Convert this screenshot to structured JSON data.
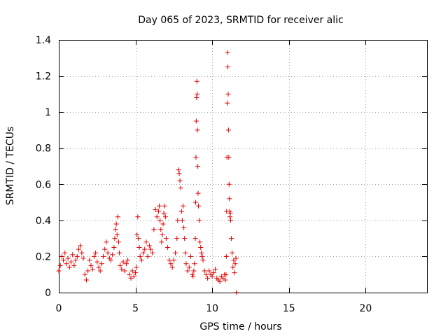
{
  "chart_data": {
    "type": "scatter",
    "title": "Day 065 of 2023, SRMTID for receiver alic",
    "xlabel": "GPS time / hours",
    "ylabel": "SRMTID / TECUs",
    "xlim": [
      0,
      24
    ],
    "ylim": [
      0,
      1.4
    ],
    "x_ticks": [
      0,
      5,
      10,
      15,
      20
    ],
    "x_tick_labels": [
      "0",
      "5",
      "10",
      "15",
      "20"
    ],
    "y_ticks": [
      0,
      0.2,
      0.4,
      0.6,
      0.8,
      1,
      1.2,
      1.4
    ],
    "y_tick_labels": [
      "0",
      "0.2",
      "0.4",
      "0.6",
      "0.8",
      "1",
      "1.2",
      "1.4"
    ],
    "grid": true,
    "marker": "+",
    "series": [
      {
        "name": "SRMTID",
        "color": "#e00000",
        "x": [
          0.0,
          0.1,
          0.2,
          0.3,
          0.4,
          0.5,
          0.6,
          0.7,
          0.8,
          0.9,
          1.0,
          1.1,
          1.2,
          1.3,
          1.4,
          1.5,
          1.6,
          1.7,
          1.8,
          1.9,
          2.0,
          2.1,
          2.2,
          2.3,
          2.4,
          2.5,
          2.6,
          2.7,
          2.8,
          2.9,
          3.0,
          3.1,
          3.2,
          3.3,
          3.4,
          3.5,
          3.6,
          3.65,
          3.7,
          3.75,
          3.8,
          3.85,
          3.9,
          3.95,
          4.0,
          4.1,
          4.2,
          4.3,
          4.4,
          4.5,
          4.6,
          4.7,
          4.8,
          4.9,
          5.0,
          5.05,
          5.1,
          5.15,
          5.2,
          5.25,
          5.3,
          5.4,
          5.5,
          5.6,
          5.7,
          5.8,
          5.9,
          6.0,
          6.1,
          6.2,
          6.3,
          6.4,
          6.5,
          6.55,
          6.6,
          6.65,
          6.7,
          6.75,
          6.8,
          6.85,
          6.9,
          6.95,
          7.0,
          7.1,
          7.2,
          7.3,
          7.4,
          7.5,
          7.6,
          7.7,
          7.75,
          7.8,
          7.85,
          7.9,
          7.95,
          8.0,
          8.05,
          8.1,
          8.15,
          8.2,
          8.25,
          8.3,
          8.4,
          8.5,
          8.6,
          8.7,
          8.75,
          8.8,
          8.85,
          8.9,
          8.92,
          8.94,
          8.96,
          8.98,
          9.0,
          9.02,
          9.04,
          9.06,
          9.08,
          9.1,
          9.15,
          9.2,
          9.25,
          9.3,
          9.35,
          9.4,
          9.5,
          9.6,
          9.7,
          9.8,
          9.9,
          10.0,
          10.1,
          10.2,
          10.3,
          10.4,
          10.5,
          10.6,
          10.7,
          10.8,
          10.85,
          10.9,
          10.92,
          10.94,
          10.96,
          10.98,
          11.0,
          11.02,
          11.04,
          11.06,
          11.08,
          11.1,
          11.12,
          11.14,
          11.16,
          11.18,
          11.2,
          11.25,
          11.3,
          11.35,
          11.4,
          11.45,
          11.5,
          11.55,
          11.58
        ],
        "y": [
          0.12,
          0.15,
          0.2,
          0.18,
          0.22,
          0.16,
          0.19,
          0.14,
          0.17,
          0.21,
          0.15,
          0.18,
          0.2,
          0.24,
          0.26,
          0.22,
          0.19,
          0.1,
          0.07,
          0.12,
          0.18,
          0.15,
          0.13,
          0.2,
          0.22,
          0.17,
          0.14,
          0.12,
          0.16,
          0.2,
          0.24,
          0.28,
          0.22,
          0.19,
          0.18,
          0.21,
          0.25,
          0.3,
          0.35,
          0.38,
          0.32,
          0.42,
          0.28,
          0.22,
          0.15,
          0.13,
          0.17,
          0.12,
          0.16,
          0.18,
          0.1,
          0.08,
          0.12,
          0.09,
          0.11,
          0.14,
          0.32,
          0.42,
          0.3,
          0.25,
          0.2,
          0.18,
          0.22,
          0.24,
          0.28,
          0.2,
          0.26,
          0.24,
          0.22,
          0.35,
          0.46,
          0.42,
          0.45,
          0.48,
          0.4,
          0.35,
          0.28,
          0.32,
          0.38,
          0.44,
          0.48,
          0.42,
          0.3,
          0.25,
          0.18,
          0.16,
          0.14,
          0.18,
          0.22,
          0.3,
          0.4,
          0.68,
          0.66,
          0.62,
          0.58,
          0.45,
          0.4,
          0.48,
          0.36,
          0.3,
          0.22,
          0.16,
          0.12,
          0.14,
          0.2,
          0.1,
          0.09,
          0.12,
          0.16,
          0.3,
          0.5,
          0.75,
          0.95,
          1.08,
          1.17,
          1.1,
          0.9,
          0.7,
          0.55,
          0.48,
          0.4,
          0.28,
          0.25,
          0.22,
          0.2,
          0.18,
          0.12,
          0.1,
          0.08,
          0.12,
          0.1,
          0.09,
          0.11,
          0.13,
          0.08,
          0.07,
          0.06,
          0.09,
          0.08,
          0.1,
          0.07,
          0.1,
          0.2,
          0.45,
          0.75,
          1.05,
          1.33,
          1.25,
          1.1,
          0.9,
          0.75,
          0.6,
          0.52,
          0.45,
          0.42,
          0.44,
          0.4,
          0.3,
          0.22,
          0.14,
          0.18,
          0.11,
          0.16,
          0.19,
          0.0
        ]
      }
    ]
  }
}
